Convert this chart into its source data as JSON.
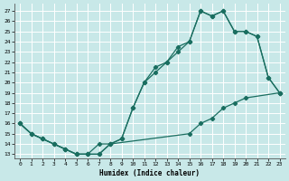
{
  "xlabel": "Humidex (Indice chaleur)",
  "bg_color": "#c8e8e8",
  "grid_color": "#ffffff",
  "line_color": "#1a6e60",
  "xlim": [
    -0.5,
    23.5
  ],
  "ylim": [
    12.6,
    27.7
  ],
  "xticks": [
    0,
    1,
    2,
    3,
    4,
    5,
    6,
    7,
    8,
    9,
    10,
    11,
    12,
    13,
    14,
    15,
    16,
    17,
    18,
    19,
    20,
    21,
    22,
    23
  ],
  "yticks": [
    13,
    14,
    15,
    16,
    17,
    18,
    19,
    20,
    21,
    22,
    23,
    24,
    25,
    26,
    27
  ],
  "curve1_x": [
    0,
    1,
    2,
    3,
    4,
    5,
    6,
    7,
    8,
    9,
    10,
    11,
    12,
    13,
    14,
    15,
    16,
    17,
    18,
    19,
    20,
    21,
    22,
    23
  ],
  "curve1_y": [
    16,
    15,
    14.5,
    14,
    13.5,
    13,
    13,
    13,
    14,
    14.5,
    17.5,
    20,
    21.5,
    22,
    23.5,
    24,
    27,
    26.5,
    27,
    25,
    25,
    24.5,
    20.5,
    19
  ],
  "curve2_x": [
    0,
    1,
    2,
    3,
    4,
    5,
    6,
    7,
    8,
    9,
    10,
    11,
    12,
    13,
    14,
    15,
    16,
    17,
    18,
    19,
    20,
    21,
    22,
    23
  ],
  "curve2_y": [
    16,
    15,
    14.5,
    14,
    13.5,
    13,
    13,
    13,
    14,
    14.5,
    17.5,
    20,
    21,
    22,
    23,
    24,
    27,
    26.5,
    27,
    25,
    25,
    24.5,
    20.5,
    19
  ],
  "curve3_x": [
    0,
    1,
    2,
    3,
    4,
    5,
    6,
    7,
    8,
    15,
    16,
    17,
    18,
    19,
    20,
    23
  ],
  "curve3_y": [
    16,
    15,
    14.5,
    14,
    13.5,
    13,
    13,
    14,
    14,
    15,
    16,
    16.5,
    17.5,
    18,
    18.5,
    19
  ]
}
